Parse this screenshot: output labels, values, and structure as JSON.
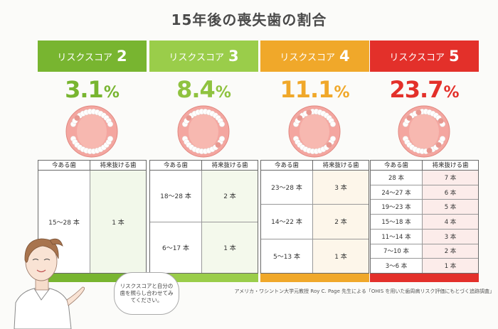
{
  "title": "15年後の喪失歯の割合",
  "colors": {
    "g2": "#78b530",
    "g3": "#9acd4a",
    "g4": "#f0a82a",
    "g5": "#e3302a"
  },
  "columns": [
    {
      "label": "リスクスコア",
      "score": "2",
      "percent": "3.1",
      "unit": "%",
      "col_left": "今ある歯",
      "col_right": "将来抜ける歯",
      "rows": [
        {
          "now": "15〜28 本",
          "lost": "1 本"
        }
      ]
    },
    {
      "label": "リスクスコア",
      "score": "3",
      "percent": "8.4",
      "unit": "%",
      "col_left": "今ある歯",
      "col_right": "将来抜ける歯",
      "rows": [
        {
          "now": "18〜28 本",
          "lost": "2 本"
        },
        {
          "now": "6〜17 本",
          "lost": "1 本"
        }
      ]
    },
    {
      "label": "リスクスコア",
      "score": "4",
      "percent": "11.1",
      "unit": "%",
      "col_left": "今ある歯",
      "col_right": "将来抜ける歯",
      "rows": [
        {
          "now": "23〜28 本",
          "lost": "3 本"
        },
        {
          "now": "14〜22 本",
          "lost": "2 本"
        },
        {
          "now": "5〜13 本",
          "lost": "1 本"
        }
      ]
    },
    {
      "label": "リスクスコア",
      "score": "5",
      "percent": "23.7",
      "unit": "%",
      "col_left": "今ある歯",
      "col_right": "将来抜ける歯",
      "rows": [
        {
          "now": "28 本",
          "lost": "7 本"
        },
        {
          "now": "24〜27 本",
          "lost": "6 本"
        },
        {
          "now": "19〜23 本",
          "lost": "5 本"
        },
        {
          "now": "15〜18 本",
          "lost": "4 本"
        },
        {
          "now": "11〜14 本",
          "lost": "3 本"
        },
        {
          "now": "7〜10 本",
          "lost": "2 本"
        },
        {
          "now": "3〜6 本",
          "lost": "1 本"
        }
      ]
    }
  ],
  "bubble": "リスクスコアと自分の歯を照らし合わせてみてください。",
  "credit": "アメリカ・ワシントン大学元教授 Roy C. Page 先生による「OHIS を用いた歯周病リスク評価にもとづく追跡調査」"
}
